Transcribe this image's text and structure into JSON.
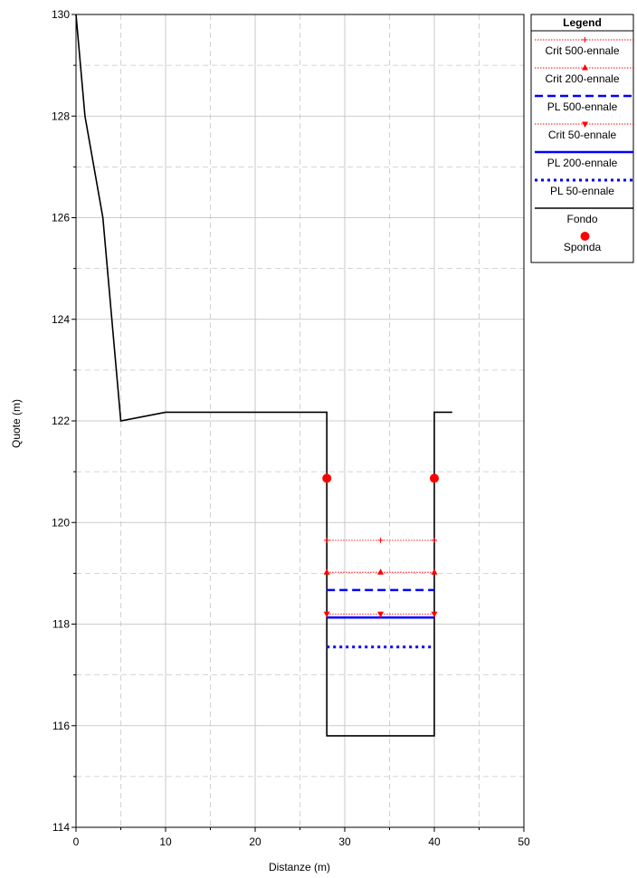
{
  "chart_data": {
    "type": "line",
    "xlabel": "Distanze (m)",
    "ylabel": "Quote (m)",
    "xlim": [
      0,
      50
    ],
    "ylim": [
      114,
      130
    ],
    "x_ticks": [
      0,
      10,
      20,
      30,
      40,
      50
    ],
    "y_ticks": [
      114,
      116,
      118,
      120,
      122,
      124,
      126,
      128,
      130
    ],
    "x_tick_labels": [
      "0",
      "10",
      "20",
      "30",
      "40",
      "50"
    ],
    "y_tick_labels": [
      "114",
      "116",
      "118",
      "120",
      "122",
      "124",
      "126",
      "128",
      "130"
    ],
    "grid": true,
    "legend_title": "Legend",
    "legend_position": "top-right",
    "series": [
      {
        "name": "Crit 500-ennale",
        "color": "#ff0000",
        "style": "dotted",
        "marker": "plus",
        "x": [
          28,
          34,
          40
        ],
        "y": [
          119.65,
          119.65,
          119.65
        ]
      },
      {
        "name": "Crit 200-ennale",
        "color": "#ff0000",
        "style": "dotted",
        "marker": "triangle-up",
        "x": [
          28,
          34,
          40
        ],
        "y": [
          119.02,
          119.02,
          119.02
        ]
      },
      {
        "name": "PL 500-ennale",
        "color": "#0000ff",
        "style": "dashed",
        "marker": "none",
        "x": [
          28,
          40
        ],
        "y": [
          118.67,
          118.67
        ]
      },
      {
        "name": "Crit 50-ennale",
        "color": "#ff0000",
        "style": "dotted",
        "marker": "triangle-down",
        "x": [
          28,
          34,
          40
        ],
        "y": [
          118.2,
          118.2,
          118.2
        ]
      },
      {
        "name": "PL 200-ennale",
        "color": "#0000ff",
        "style": "solid",
        "marker": "none",
        "x": [
          28,
          40
        ],
        "y": [
          118.13,
          118.13
        ]
      },
      {
        "name": "PL 50-ennale",
        "color": "#0000ff",
        "style": "dotted-thick",
        "marker": "none",
        "x": [
          28,
          40
        ],
        "y": [
          117.55,
          117.55
        ]
      },
      {
        "name": "Fondo",
        "color": "#000000",
        "style": "solid",
        "marker": "none",
        "x": [
          0,
          1,
          3,
          5,
          10,
          28,
          28,
          40,
          40,
          42
        ],
        "y": [
          130,
          128,
          126,
          122,
          122.17,
          122.17,
          115.8,
          115.8,
          122.17,
          122.17
        ]
      },
      {
        "name": "Sponda",
        "color": "#ff0000",
        "style": "none",
        "marker": "circle",
        "x": [
          28,
          40
        ],
        "y": [
          120.87,
          120.87
        ]
      }
    ]
  }
}
